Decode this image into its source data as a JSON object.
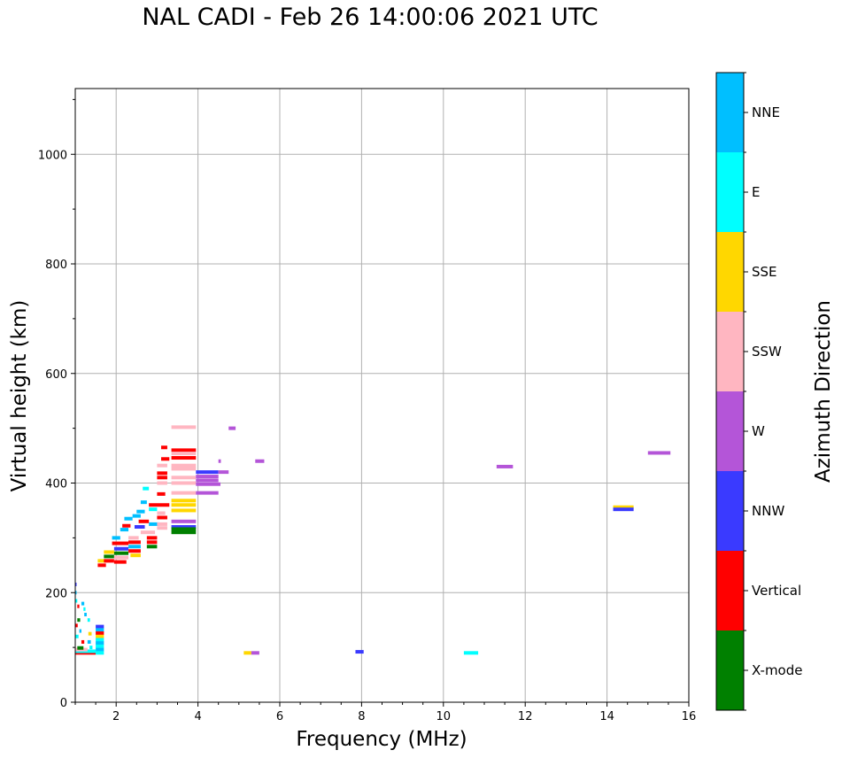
{
  "title": "NAL CADI - Feb 26 14:00:06 2021 UTC",
  "chart_data": {
    "type": "scatter",
    "title": "NAL CADI - Feb 26 14:00:06 2021 UTC",
    "xlabel": "Frequency (MHz)",
    "ylabel": "Virtual height (km)",
    "xlim": [
      1,
      16
    ],
    "ylim": [
      0,
      1120
    ],
    "xticks": [
      2,
      4,
      6,
      8,
      10,
      12,
      14,
      16
    ],
    "yticks": [
      0,
      200,
      400,
      600,
      800,
      1000
    ],
    "grid": true,
    "colorbar": {
      "label": "Azimuth Direction",
      "categories": [
        {
          "name": "X-mode",
          "color": "#008000"
        },
        {
          "name": "Vertical",
          "color": "#ff0000"
        },
        {
          "name": "NNW",
          "color": "#3a3aff"
        },
        {
          "name": "W",
          "color": "#b455d8"
        },
        {
          "name": "SSW",
          "color": "#ffb6c1"
        },
        {
          "name": "SSE",
          "color": "#ffd700"
        },
        {
          "name": "E",
          "color": "#00ffff"
        },
        {
          "name": "NNE",
          "color": "#00bfff"
        }
      ]
    },
    "echoes": [
      {
        "f0": 1.0,
        "f1": 1.03,
        "h": 215,
        "dir": "NNW"
      },
      {
        "f0": 1.0,
        "f1": 1.03,
        "h": 200,
        "dir": "NNE"
      },
      {
        "f0": 1.0,
        "f1": 1.05,
        "h": 185,
        "dir": "E"
      },
      {
        "f0": 1.05,
        "f1": 1.1,
        "h": 175,
        "dir": "Vertical"
      },
      {
        "f0": 1.05,
        "f1": 1.12,
        "h": 150,
        "dir": "X-mode"
      },
      {
        "f0": 1.0,
        "f1": 1.06,
        "h": 140,
        "dir": "Vertical"
      },
      {
        "f0": 1.1,
        "f1": 1.15,
        "h": 130,
        "dir": "NNE"
      },
      {
        "f0": 1.0,
        "f1": 1.08,
        "h": 120,
        "dir": "E"
      },
      {
        "f0": 1.15,
        "f1": 1.22,
        "h": 180,
        "dir": "NNE"
      },
      {
        "f0": 1.2,
        "f1": 1.25,
        "h": 170,
        "dir": "E"
      },
      {
        "f0": 1.22,
        "f1": 1.28,
        "h": 160,
        "dir": "NNE"
      },
      {
        "f0": 1.15,
        "f1": 1.22,
        "h": 110,
        "dir": "Vertical"
      },
      {
        "f0": 1.3,
        "f1": 1.36,
        "h": 150,
        "dir": "E"
      },
      {
        "f0": 1.32,
        "f1": 1.4,
        "h": 125,
        "dir": "SSE"
      },
      {
        "f0": 1.3,
        "f1": 1.38,
        "h": 110,
        "dir": "NNE"
      },
      {
        "f0": 1.35,
        "f1": 1.42,
        "h": 100,
        "dir": "E"
      },
      {
        "f0": 1.0,
        "f1": 1.5,
        "h": 90,
        "dir": "Vertical"
      },
      {
        "f0": 1.0,
        "f1": 1.5,
        "h": 93,
        "dir": "E"
      },
      {
        "f0": 1.0,
        "f1": 1.3,
        "h": 96,
        "dir": "SSW"
      },
      {
        "f0": 1.05,
        "f1": 1.2,
        "h": 99,
        "dir": "X-mode"
      },
      {
        "f0": 1.5,
        "f1": 1.7,
        "h": 138,
        "dir": "NNW"
      },
      {
        "f0": 1.5,
        "f1": 1.7,
        "h": 132,
        "dir": "NNE"
      },
      {
        "f0": 1.5,
        "f1": 1.7,
        "h": 126,
        "dir": "Vertical"
      },
      {
        "f0": 1.5,
        "f1": 1.7,
        "h": 120,
        "dir": "SSE"
      },
      {
        "f0": 1.5,
        "f1": 1.7,
        "h": 114,
        "dir": "E"
      },
      {
        "f0": 1.5,
        "f1": 1.7,
        "h": 108,
        "dir": "NNE"
      },
      {
        "f0": 1.5,
        "f1": 1.7,
        "h": 102,
        "dir": "E"
      },
      {
        "f0": 1.5,
        "f1": 1.7,
        "h": 96,
        "dir": "NNE"
      },
      {
        "f0": 1.5,
        "f1": 1.7,
        "h": 90,
        "dir": "E"
      },
      {
        "f0": 1.55,
        "f1": 1.75,
        "h": 258,
        "dir": "SSE"
      },
      {
        "f0": 1.55,
        "f1": 1.75,
        "h": 250,
        "dir": "Vertical"
      },
      {
        "f0": 1.7,
        "f1": 1.95,
        "h": 274,
        "dir": "SSE"
      },
      {
        "f0": 1.7,
        "f1": 1.95,
        "h": 266,
        "dir": "X-mode"
      },
      {
        "f0": 1.7,
        "f1": 1.95,
        "h": 258,
        "dir": "Vertical"
      },
      {
        "f0": 1.9,
        "f1": 2.1,
        "h": 300,
        "dir": "NNE"
      },
      {
        "f0": 1.9,
        "f1": 2.3,
        "h": 290,
        "dir": "Vertical"
      },
      {
        "f0": 1.95,
        "f1": 2.3,
        "h": 280,
        "dir": "NNW"
      },
      {
        "f0": 1.95,
        "f1": 2.3,
        "h": 272,
        "dir": "X-mode"
      },
      {
        "f0": 1.95,
        "f1": 2.3,
        "h": 264,
        "dir": "SSW"
      },
      {
        "f0": 1.95,
        "f1": 2.25,
        "h": 256,
        "dir": "Vertical"
      },
      {
        "f0": 2.1,
        "f1": 2.3,
        "h": 315,
        "dir": "NNE"
      },
      {
        "f0": 2.15,
        "f1": 2.35,
        "h": 322,
        "dir": "Vertical"
      },
      {
        "f0": 2.2,
        "f1": 2.4,
        "h": 335,
        "dir": "NNE"
      },
      {
        "f0": 2.3,
        "f1": 2.55,
        "h": 300,
        "dir": "SSW"
      },
      {
        "f0": 2.3,
        "f1": 2.6,
        "h": 292,
        "dir": "Vertical"
      },
      {
        "f0": 2.3,
        "f1": 2.6,
        "h": 284,
        "dir": "NNE"
      },
      {
        "f0": 2.3,
        "f1": 2.6,
        "h": 276,
        "dir": "Vertical"
      },
      {
        "f0": 2.35,
        "f1": 2.6,
        "h": 268,
        "dir": "SSE"
      },
      {
        "f0": 2.4,
        "f1": 2.6,
        "h": 340,
        "dir": "NNE"
      },
      {
        "f0": 2.45,
        "f1": 2.7,
        "h": 320,
        "dir": "NNW"
      },
      {
        "f0": 2.5,
        "f1": 2.7,
        "h": 348,
        "dir": "NNE"
      },
      {
        "f0": 2.55,
        "f1": 2.8,
        "h": 330,
        "dir": "Vertical"
      },
      {
        "f0": 2.6,
        "f1": 2.75,
        "h": 365,
        "dir": "NNE"
      },
      {
        "f0": 2.65,
        "f1": 2.8,
        "h": 390,
        "dir": "E"
      },
      {
        "f0": 2.6,
        "f1": 2.95,
        "h": 310,
        "dir": "SSW"
      },
      {
        "f0": 2.75,
        "f1": 3.0,
        "h": 300,
        "dir": "Vertical"
      },
      {
        "f0": 2.75,
        "f1": 3.0,
        "h": 292,
        "dir": "Vertical"
      },
      {
        "f0": 2.75,
        "f1": 3.0,
        "h": 284,
        "dir": "X-mode"
      },
      {
        "f0": 2.8,
        "f1": 3.05,
        "h": 325,
        "dir": "NNE"
      },
      {
        "f0": 2.8,
        "f1": 3.3,
        "h": 360,
        "dir": "Vertical"
      },
      {
        "f0": 2.8,
        "f1": 3.0,
        "h": 352,
        "dir": "E"
      },
      {
        "f0": 3.0,
        "f1": 3.2,
        "h": 345,
        "dir": "SSW"
      },
      {
        "f0": 3.0,
        "f1": 3.25,
        "h": 337,
        "dir": "Vertical"
      },
      {
        "f0": 3.0,
        "f1": 3.25,
        "h": 325,
        "dir": "SSW"
      },
      {
        "f0": 3.0,
        "f1": 3.25,
        "h": 318,
        "dir": "SSW"
      },
      {
        "f0": 3.0,
        "f1": 3.2,
        "h": 380,
        "dir": "Vertical"
      },
      {
        "f0": 3.0,
        "f1": 3.25,
        "h": 400,
        "dir": "SSW"
      },
      {
        "f0": 3.0,
        "f1": 3.25,
        "h": 410,
        "dir": "Vertical"
      },
      {
        "f0": 3.0,
        "f1": 3.25,
        "h": 418,
        "dir": "Vertical"
      },
      {
        "f0": 3.0,
        "f1": 3.25,
        "h": 432,
        "dir": "SSW"
      },
      {
        "f0": 3.1,
        "f1": 3.3,
        "h": 444,
        "dir": "Vertical"
      },
      {
        "f0": 3.1,
        "f1": 3.25,
        "h": 465,
        "dir": "Vertical"
      },
      {
        "f0": 3.35,
        "f1": 3.95,
        "h": 502,
        "dir": "SSW"
      },
      {
        "f0": 3.35,
        "f1": 3.95,
        "h": 460,
        "dir": "Vertical"
      },
      {
        "f0": 3.35,
        "f1": 3.95,
        "h": 454,
        "dir": "SSW"
      },
      {
        "f0": 3.35,
        "f1": 3.95,
        "h": 446,
        "dir": "Vertical"
      },
      {
        "f0": 3.35,
        "f1": 3.95,
        "h": 432,
        "dir": "SSW"
      },
      {
        "f0": 3.35,
        "f1": 3.95,
        "h": 426,
        "dir": "SSW"
      },
      {
        "f0": 3.35,
        "f1": 3.95,
        "h": 410,
        "dir": "SSW"
      },
      {
        "f0": 3.35,
        "f1": 3.95,
        "h": 400,
        "dir": "SSW"
      },
      {
        "f0": 3.35,
        "f1": 3.95,
        "h": 382,
        "dir": "SSW"
      },
      {
        "f0": 3.35,
        "f1": 3.95,
        "h": 368,
        "dir": "SSE"
      },
      {
        "f0": 3.35,
        "f1": 3.95,
        "h": 360,
        "dir": "SSE"
      },
      {
        "f0": 3.35,
        "f1": 3.95,
        "h": 350,
        "dir": "SSE"
      },
      {
        "f0": 3.35,
        "f1": 3.95,
        "h": 330,
        "dir": "W"
      },
      {
        "f0": 3.35,
        "f1": 3.95,
        "h": 320,
        "dir": "NNW"
      },
      {
        "f0": 3.35,
        "f1": 3.95,
        "h": 316,
        "dir": "X-mode"
      },
      {
        "f0": 3.35,
        "f1": 3.95,
        "h": 310,
        "dir": "X-mode"
      },
      {
        "f0": 3.95,
        "f1": 4.5,
        "h": 420,
        "dir": "NNW"
      },
      {
        "f0": 3.95,
        "f1": 4.5,
        "h": 412,
        "dir": "W"
      },
      {
        "f0": 3.95,
        "f1": 4.5,
        "h": 405,
        "dir": "W"
      },
      {
        "f0": 3.95,
        "f1": 4.55,
        "h": 398,
        "dir": "W"
      },
      {
        "f0": 3.95,
        "f1": 4.5,
        "h": 382,
        "dir": "W"
      },
      {
        "f0": 4.5,
        "f1": 4.75,
        "h": 420,
        "dir": "W"
      },
      {
        "f0": 4.5,
        "f1": 4.56,
        "h": 440,
        "dir": "W"
      },
      {
        "f0": 4.75,
        "f1": 4.92,
        "h": 500,
        "dir": "W"
      },
      {
        "f0": 5.4,
        "f1": 5.62,
        "h": 440,
        "dir": "W"
      },
      {
        "f0": 5.3,
        "f1": 5.5,
        "h": 90,
        "dir": "W"
      },
      {
        "f0": 5.12,
        "f1": 5.3,
        "h": 90,
        "dir": "SSE"
      },
      {
        "f0": 7.85,
        "f1": 8.05,
        "h": 92,
        "dir": "NNW"
      },
      {
        "f0": 10.5,
        "f1": 10.85,
        "h": 90,
        "dir": "E"
      },
      {
        "f0": 11.3,
        "f1": 11.7,
        "h": 430,
        "dir": "W"
      },
      {
        "f0": 14.15,
        "f1": 14.65,
        "h": 356,
        "dir": "SSE"
      },
      {
        "f0": 14.15,
        "f1": 14.65,
        "h": 352,
        "dir": "NNW"
      },
      {
        "f0": 15.0,
        "f1": 15.55,
        "h": 455,
        "dir": "W"
      }
    ]
  }
}
